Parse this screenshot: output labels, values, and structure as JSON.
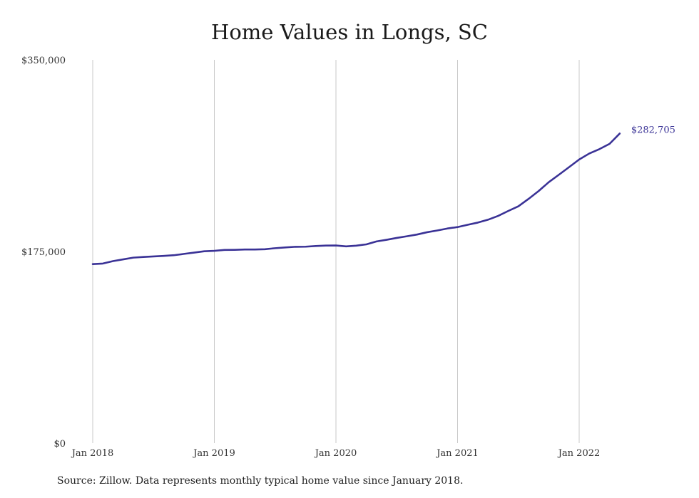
{
  "chart_data": {
    "type": "line",
    "title": "Home Values in Longs, SC",
    "xlabel": "",
    "ylabel": "",
    "x_tick_labels": [
      "Jan 2018",
      "Jan 2019",
      "Jan 2020",
      "Jan 2021",
      "Jan 2022"
    ],
    "y_tick_labels": [
      "$0",
      "$175,000",
      "$350,000"
    ],
    "y_ticks": [
      0,
      175000,
      350000
    ],
    "ylim": [
      0,
      350000
    ],
    "xlim": [
      "2018-01",
      "2022-05"
    ],
    "grid": "vertical at each January",
    "line_color": "#3a3296",
    "end_label": "$282,705",
    "series": [
      {
        "x": [
          "2018-01",
          "2018-02",
          "2018-03",
          "2018-04",
          "2018-05",
          "2018-06",
          "2018-07",
          "2018-08",
          "2018-09",
          "2018-10",
          "2018-11",
          "2018-12",
          "2019-01",
          "2019-02",
          "2019-03",
          "2019-04",
          "2019-05",
          "2019-06",
          "2019-07",
          "2019-08",
          "2019-09",
          "2019-10",
          "2019-11",
          "2019-12",
          "2020-01",
          "2020-02",
          "2020-03",
          "2020-04",
          "2020-05",
          "2020-06",
          "2020-07",
          "2020-08",
          "2020-09",
          "2020-10",
          "2020-11",
          "2020-12",
          "2021-01",
          "2021-02",
          "2021-03",
          "2021-04",
          "2021-05",
          "2021-06",
          "2021-07",
          "2021-08",
          "2021-09",
          "2021-10",
          "2021-11",
          "2021-12",
          "2022-01",
          "2022-02",
          "2022-03",
          "2022-04",
          "2022-05"
        ],
        "values": [
          163500,
          164000,
          166200,
          167800,
          169400,
          170000,
          170500,
          171000,
          171600,
          172800,
          174000,
          175200,
          175600,
          176400,
          176500,
          176800,
          176800,
          177100,
          178000,
          178700,
          179300,
          179400,
          180000,
          180400,
          180500,
          179700,
          180300,
          181500,
          184200,
          185700,
          187400,
          188900,
          190500,
          192600,
          194200,
          196000,
          197300,
          199400,
          201400,
          204000,
          207500,
          212000,
          216300,
          223000,
          230200,
          238300,
          245100,
          252000,
          259000,
          264500,
          268500,
          273300,
          282705
        ]
      }
    ]
  },
  "footer": {
    "source": "Source: Zillow. Data represents monthly typical home value since January 2018."
  }
}
